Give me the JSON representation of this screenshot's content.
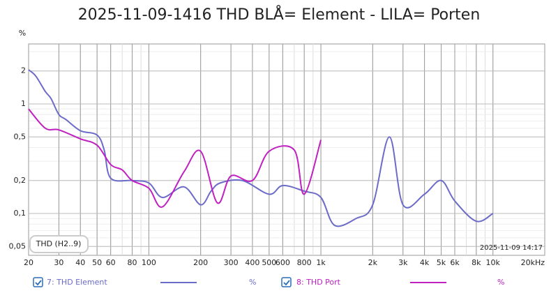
{
  "chart_data": {
    "type": "line",
    "title": "2025-11-09-1416 THD BLÅ= Element - LILA= Porten",
    "y_label": "%",
    "log_x": true,
    "log_y": true,
    "grid": true,
    "xlim": [
      20,
      20000
    ],
    "xticks": [
      20,
      30,
      40,
      50,
      60,
      80,
      100,
      200,
      300,
      400,
      500,
      600,
      800,
      {
        "value": 1000,
        "label": "1k"
      },
      {
        "value": 2000,
        "label": "2k"
      },
      {
        "value": 3000,
        "label": "3k"
      },
      {
        "value": 4000,
        "label": "4k"
      },
      {
        "value": 5000,
        "label": "5k"
      },
      {
        "value": 6000,
        "label": "6k"
      },
      {
        "value": 8000,
        "label": "8k"
      },
      {
        "value": 10000,
        "label": "10k"
      },
      {
        "value": 20000,
        "label": "20kHz"
      }
    ],
    "ylim": [
      0.0415,
      3.53
    ],
    "yticks": [
      {
        "value": 0.05,
        "label": "0,05"
      },
      {
        "value": 0.1,
        "label": "0,1"
      },
      {
        "value": 0.2,
        "label": "0,2"
      },
      {
        "value": 0.5,
        "label": "0,5"
      },
      1,
      2
    ],
    "annotations": [
      "THD (H2..9)",
      "2025-11-09 14:17"
    ],
    "series": [
      {
        "name": "7: THD Element",
        "unit": "%",
        "color": "#6b6bc8",
        "x": [
          20,
          22,
          25,
          27,
          30,
          33,
          40,
          50,
          55,
          60,
          80,
          100,
          120,
          160,
          200,
          230,
          260,
          350,
          500,
          600,
          800,
          1000,
          1200,
          1600,
          2000,
          2500,
          3000,
          4000,
          5000,
          6000,
          8000,
          10000
        ],
        "values": [
          2.05,
          1.8,
          1.3,
          1.12,
          0.8,
          0.72,
          0.57,
          0.52,
          0.38,
          0.21,
          0.2,
          0.19,
          0.14,
          0.175,
          0.12,
          0.16,
          0.19,
          0.2,
          0.15,
          0.18,
          0.16,
          0.14,
          0.078,
          0.09,
          0.12,
          0.5,
          0.12,
          0.15,
          0.2,
          0.13,
          0.085,
          0.1
        ]
      },
      {
        "name": "8: THD Port",
        "unit": "%",
        "color": "#c020c0",
        "x": [
          20,
          25,
          30,
          40,
          50,
          60,
          70,
          80,
          100,
          120,
          160,
          200,
          250,
          300,
          400,
          500,
          700,
          800,
          1000
        ],
        "values": [
          0.9,
          0.6,
          0.58,
          0.48,
          0.42,
          0.28,
          0.25,
          0.2,
          0.17,
          0.115,
          0.24,
          0.37,
          0.125,
          0.22,
          0.2,
          0.37,
          0.38,
          0.15,
          0.47
        ]
      }
    ]
  }
}
